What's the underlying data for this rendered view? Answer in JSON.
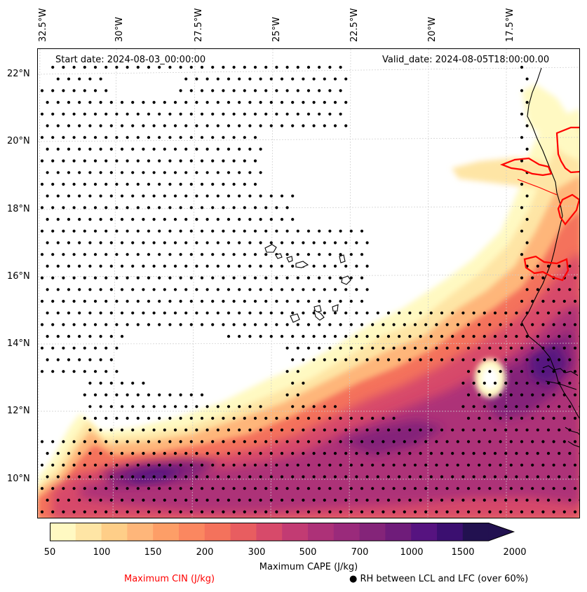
{
  "map": {
    "start_date": "Start date: 2024-08-03_00:00:00",
    "valid_date": "Valid_date: 2024-08-05T18:00:00.00",
    "lon_labels": [
      "32.5°W",
      "30°W",
      "27.5°W",
      "25°W",
      "22.5°W",
      "20°W",
      "17.5°W"
    ],
    "lat_labels": [
      "22°N",
      "20°N",
      "18°N",
      "16°N",
      "14°N",
      "12°N",
      "10°N"
    ]
  },
  "colorbar": {
    "title": "Maximum CAPE (J/kg)",
    "tick_labels": [
      "50",
      "100",
      "150",
      "200",
      "300",
      "500",
      "700",
      "1000",
      "1500",
      "2000"
    ],
    "colors": [
      "#fff9c2",
      "#fee5a5",
      "#fece88",
      "#feb67a",
      "#fd9e67",
      "#fb8760",
      "#f4725c",
      "#e85d60",
      "#d74a6a",
      "#c23b73",
      "#ad3178",
      "#9a2a7b",
      "#842479",
      "#6f1c7a",
      "#561380",
      "#3b0f70",
      "#221150"
    ]
  },
  "legend": {
    "cin_label": "Maximum CIN (J/kg)",
    "cin_color": "#ff0000",
    "rh_label": "RH between LCL and LFC (over 60%)",
    "rh_symbol": "●"
  }
}
